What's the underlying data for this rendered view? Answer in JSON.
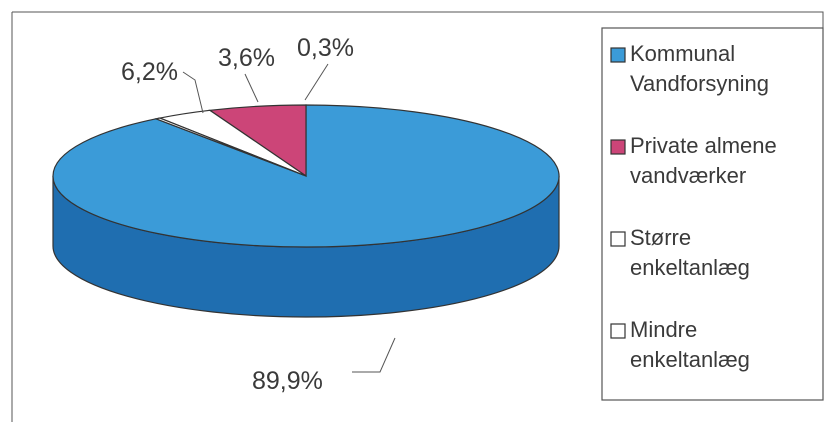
{
  "chart_data": {
    "type": "pie",
    "categories": [
      "Kommunal Vandforsyning",
      "Private almene vandværker",
      "Større enkeltanlæg",
      "Mindre enkeltanlæg"
    ],
    "values": [
      89.9,
      6.2,
      3.6,
      0.3
    ],
    "value_labels": [
      "89,9%",
      "6,2%",
      "3,6%",
      "0,3%"
    ],
    "legend": [
      {
        "lines": [
          "Kommunal",
          "Vandforsyning"
        ],
        "color": "#3b9bd8"
      },
      {
        "lines": [
          "Private almene",
          "vandværker"
        ],
        "color": "#cc4578"
      },
      {
        "lines": [
          "Større",
          "enkeltanlæg"
        ],
        "color": "#ffffff"
      },
      {
        "lines": [
          "Mindre",
          "enkeltanlæg"
        ],
        "color": "#ffffff"
      }
    ],
    "legend_position": "right",
    "colors": [
      "#3b9bd8",
      "#cc4578",
      "#ffffff",
      "#ffffff"
    ],
    "side_colors": [
      "#1f6eb0",
      "#8e2a52",
      "#dddddd",
      "#dddddd"
    ],
    "title": "",
    "style": "3d-pie"
  }
}
